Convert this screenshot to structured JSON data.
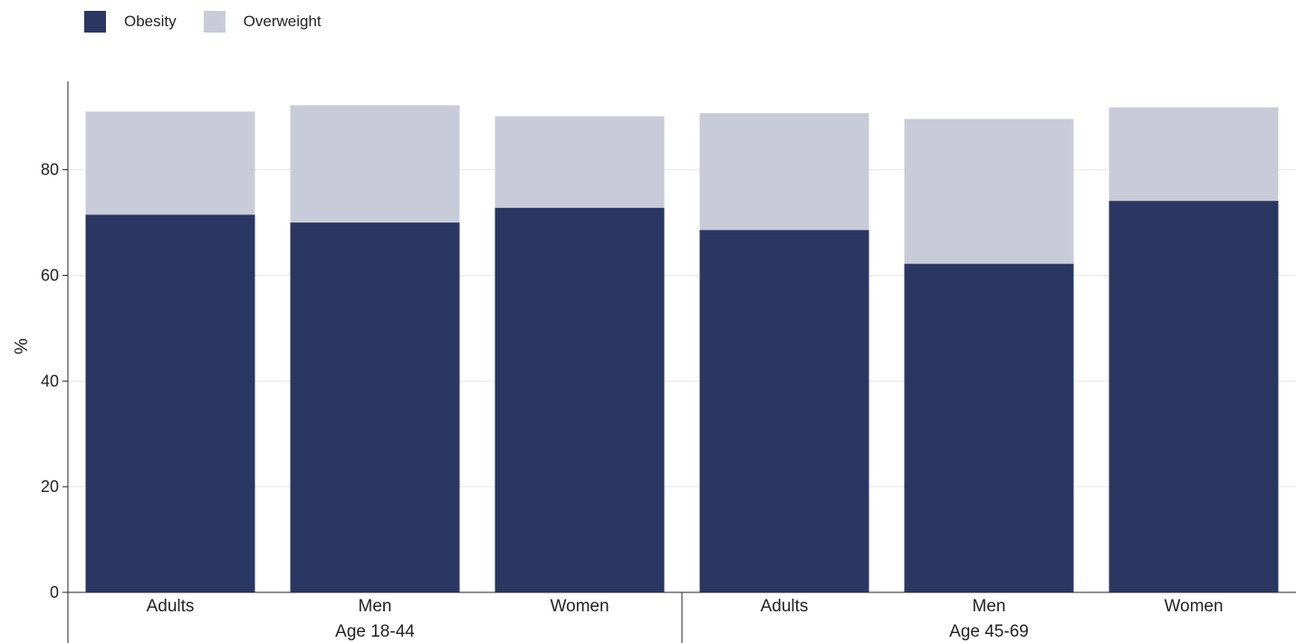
{
  "legend": [
    {
      "label": "Obesity",
      "color": "#2b3763"
    },
    {
      "label": "Overweight",
      "color": "#c9ccd8"
    }
  ],
  "chart_data": {
    "type": "bar",
    "stacked": true,
    "title": "",
    "xlabel": "",
    "ylabel": "%",
    "ylim": [
      0,
      95
    ],
    "yticks": [
      0,
      20,
      40,
      60,
      80
    ],
    "grid": true,
    "legend_position": "top-left",
    "groups": [
      {
        "label": "Age 18-44",
        "categories": [
          "Adults",
          "Men",
          "Women"
        ]
      },
      {
        "label": "Age 45-69",
        "categories": [
          "Adults",
          "Men",
          "Women"
        ]
      }
    ],
    "categories": [
      "Adults",
      "Men",
      "Women",
      "Adults",
      "Men",
      "Women"
    ],
    "series": [
      {
        "name": "Obesity",
        "color": "#2b3763",
        "values": [
          71.5,
          70.0,
          72.8,
          68.6,
          62.2,
          74.1
        ]
      },
      {
        "name": "Overweight",
        "color": "#c9ccd8",
        "values": [
          19.5,
          22.2,
          17.3,
          22.1,
          27.4,
          17.7
        ]
      }
    ]
  }
}
